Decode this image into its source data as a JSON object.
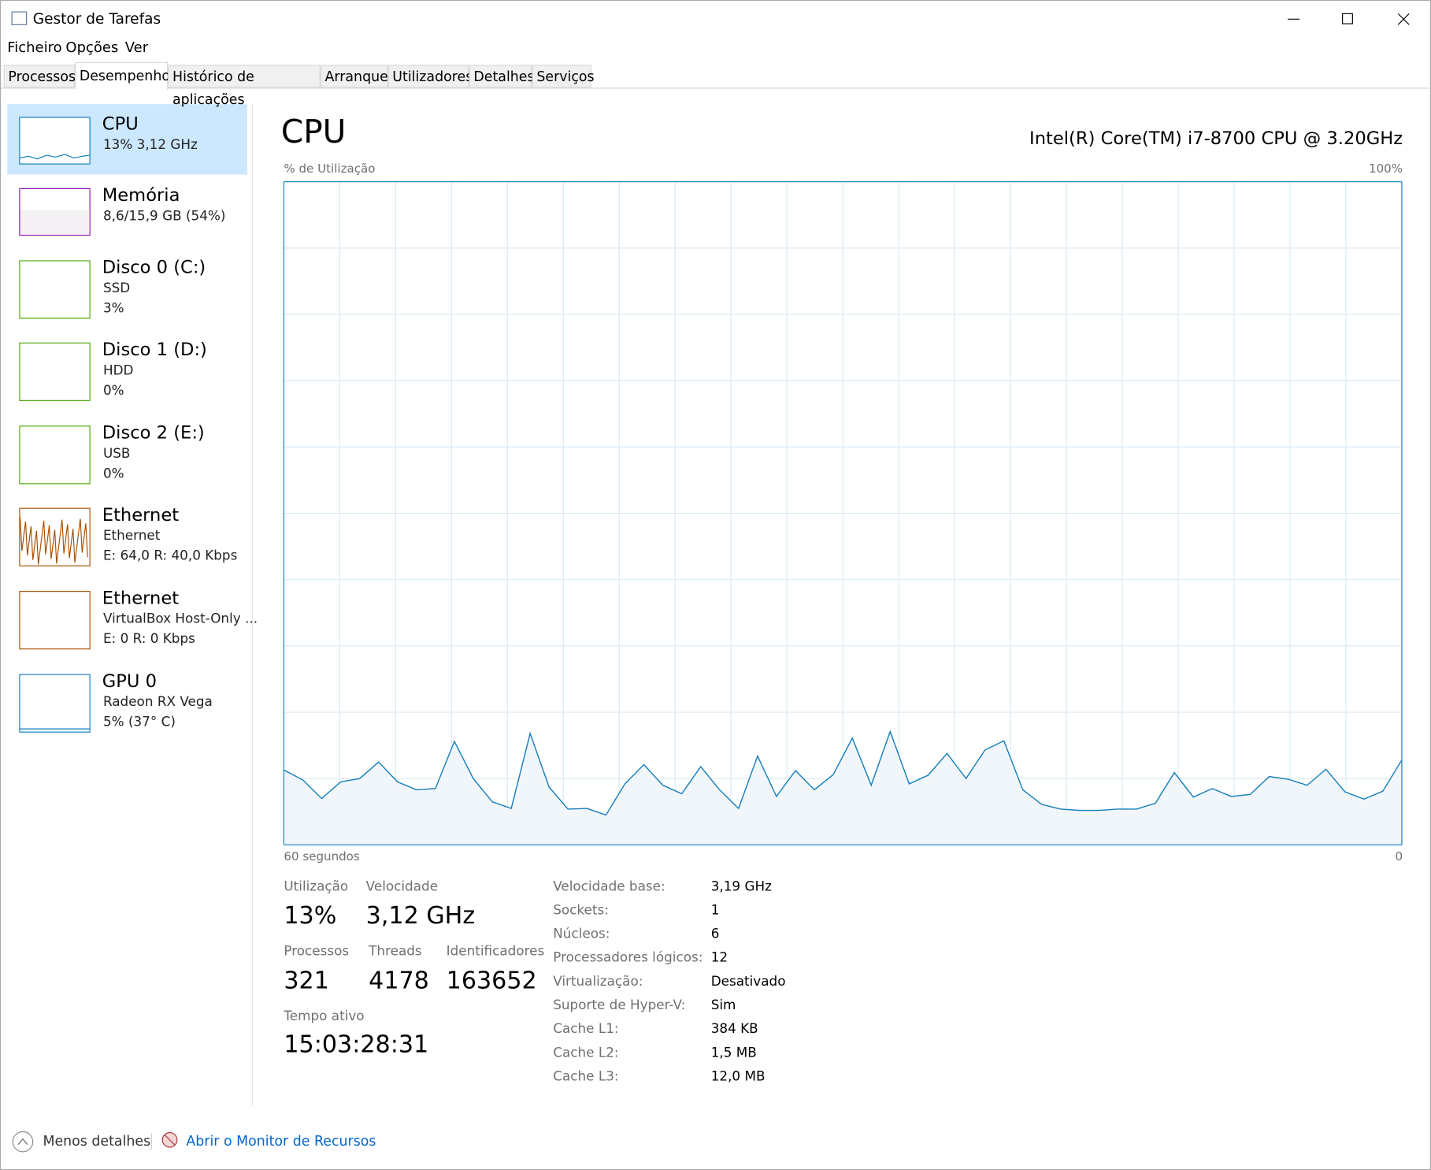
{
  "window": {
    "title": "Gestor de Tarefas"
  },
  "menu": [
    "Ficheiro",
    "Opções",
    "Ver"
  ],
  "tabs": [
    "Processos",
    "Desempenho",
    "Histórico de aplicações",
    "Arranque",
    "Utilizadores",
    "Detalhes",
    "Serviços"
  ],
  "sidebar": [
    {
      "title": "CPU",
      "lines": [
        "13%  3,12 GHz"
      ]
    },
    {
      "title": "Memória",
      "lines": [
        "8,6/15,9 GB (54%)"
      ]
    },
    {
      "title": "Disco 0 (C:)",
      "lines": [
        "SSD",
        "3%"
      ]
    },
    {
      "title": "Disco 1 (D:)",
      "lines": [
        "HDD",
        "0%"
      ]
    },
    {
      "title": "Disco 2 (E:)",
      "lines": [
        "USB",
        "0%"
      ]
    },
    {
      "title": "Ethernet",
      "lines": [
        "Ethernet",
        "E: 64,0  R: 40,0 Kbps"
      ]
    },
    {
      "title": "Ethernet",
      "lines": [
        "VirtualBox Host-Only ...",
        "E: 0  R: 0 Kbps"
      ]
    },
    {
      "title": "GPU 0",
      "lines": [
        "Radeon RX Vega",
        "5% (37° C)"
      ]
    }
  ],
  "header": {
    "title": "CPU",
    "model": "Intel(R) Core(TM) i7-8700 CPU @ 3.20GHz"
  },
  "graph": {
    "type": "area",
    "ylabel": "% de Utilização",
    "ylim": [
      0,
      100
    ],
    "yticks": [
      {
        "value": 100,
        "label": "100%"
      }
    ],
    "xlim": [
      60,
      0
    ],
    "xticks": [
      {
        "value": 60,
        "label": "60 segundos"
      },
      {
        "value": 0,
        "label": "0"
      }
    ],
    "color": "#117dbb",
    "values": [
      11.3,
      9.8,
      7.0,
      9.5,
      10.0,
      12.5,
      9.5,
      8.3,
      8.5,
      15.6,
      10.0,
      6.5,
      5.5,
      16.8,
      8.7,
      5.4,
      5.5,
      4.5,
      9.2,
      12.1,
      9.0,
      7.7,
      11.8,
      8.3,
      5.5,
      13.4,
      7.3,
      11.2,
      8.3,
      10.6,
      16.1,
      9.0,
      17.1,
      9.2,
      10.5,
      13.8,
      10.0,
      14.3,
      15.7,
      8.3,
      6.1,
      5.4,
      5.2,
      5.2,
      5.4,
      5.4,
      6.3,
      10.9,
      7.2,
      8.5,
      7.3,
      7.6,
      10.3,
      9.9,
      9.0,
      11.4,
      8.0,
      6.9,
      8.1,
      12.8
    ]
  },
  "stats": {
    "utilization": {
      "label": "Utilização",
      "value": "13%"
    },
    "speed": {
      "label": "Velocidade",
      "value": "3,12 GHz"
    },
    "processes": {
      "label": "Processos",
      "value": "321"
    },
    "threads": {
      "label": "Threads",
      "value": "4178"
    },
    "handles": {
      "label": "Identificadores",
      "value": "163652"
    },
    "uptime": {
      "label": "Tempo ativo",
      "value": "15:03:28:31"
    }
  },
  "details": [
    [
      "Velocidade base:",
      "3,19 GHz"
    ],
    [
      "Sockets:",
      "1"
    ],
    [
      "Núcleos:",
      "6"
    ],
    [
      "Processadores lógicos:",
      "12"
    ],
    [
      "Virtualização:",
      "Desativado"
    ],
    [
      "Suporte de Hyper-V:",
      "Sim"
    ],
    [
      "Cache L1:",
      "384 KB"
    ],
    [
      "Cache L2:",
      "1,5 MB"
    ],
    [
      "Cache L3:",
      "12,0 MB"
    ]
  ],
  "footer": {
    "less": "Menos detalhes",
    "link": "Abrir o Monitor de Recursos"
  }
}
